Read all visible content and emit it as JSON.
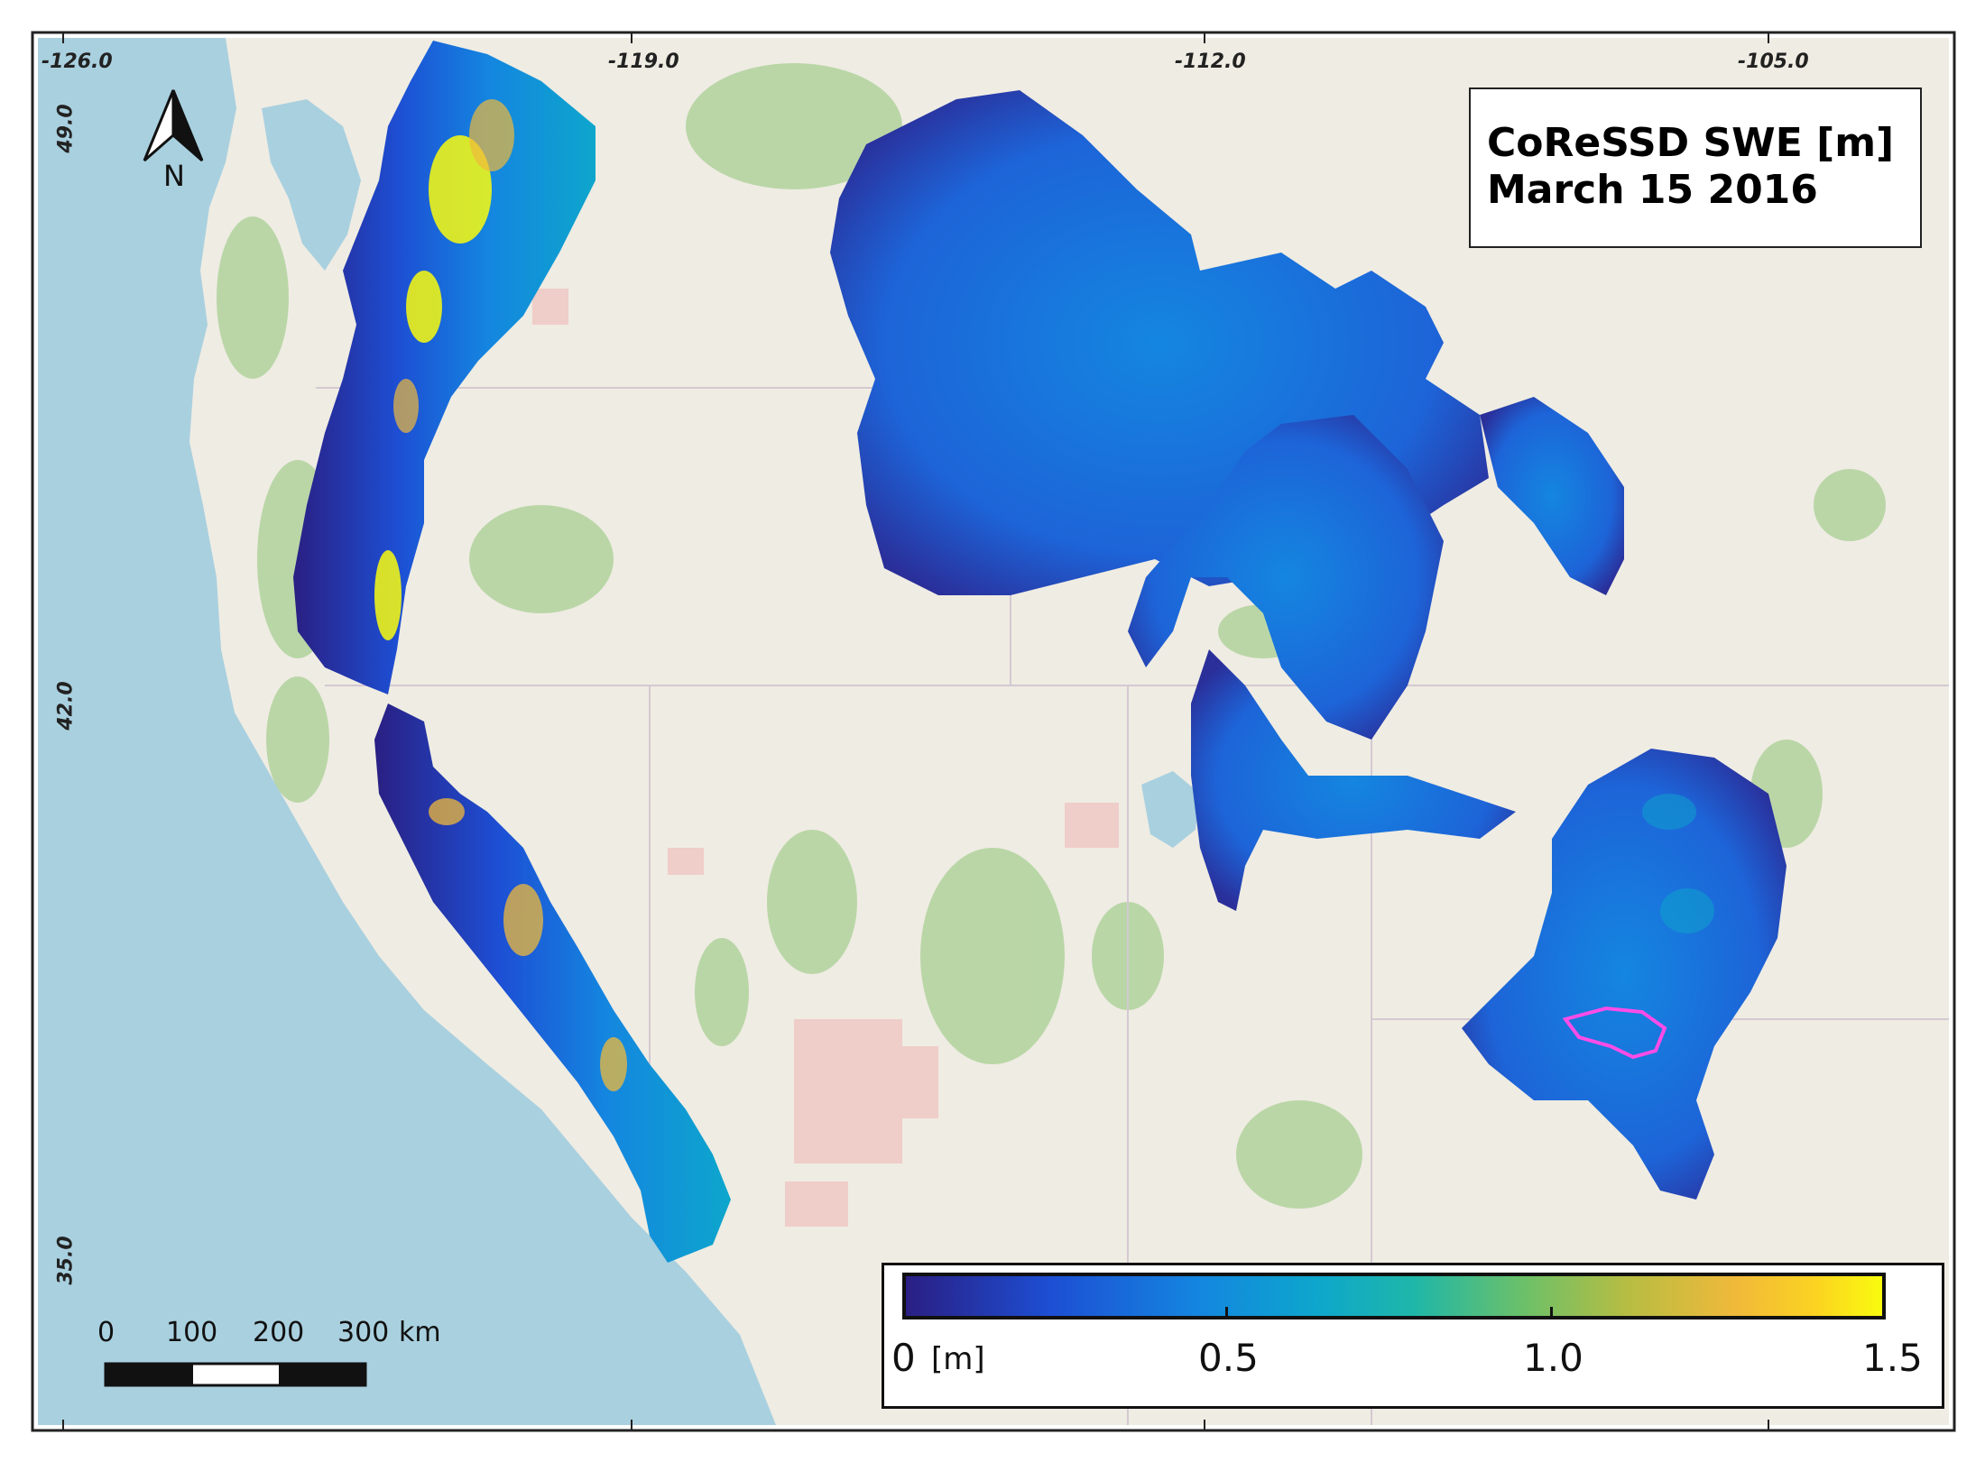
{
  "title": {
    "line1": "CoReSSD SWE [m]",
    "line2": "March 15 2016"
  },
  "graticule": {
    "longitudes": [
      "-126.0",
      "-119.0",
      "-112.0",
      "-105.0"
    ],
    "latitudes": [
      "49.0",
      "42.0",
      "35.0"
    ]
  },
  "north_arrow": {
    "label": "N",
    "icon": "north-arrow-icon"
  },
  "scale_bar": {
    "labels": [
      "0",
      "100",
      "200",
      "300"
    ],
    "unit": "km"
  },
  "colorbar": {
    "min_label": "0",
    "unit_label": "[m]",
    "tick_labels": [
      "0.5",
      "1.0",
      "1.5"
    ],
    "range": [
      0,
      1.5
    ],
    "colormap": [
      "#2a1f83",
      "#1d4fd4",
      "#1486e0",
      "#0da6cc",
      "#1fb7a9",
      "#6ac06a",
      "#b7bd42",
      "#f0b93a",
      "#fbd222",
      "#f9fb0e"
    ]
  },
  "colors": {
    "ocean": "#a9d0df",
    "land": "#efece3",
    "forest": "#a8cf93",
    "reservation": "#efc8c4",
    "watershed_outline": "#ff4ce8"
  }
}
